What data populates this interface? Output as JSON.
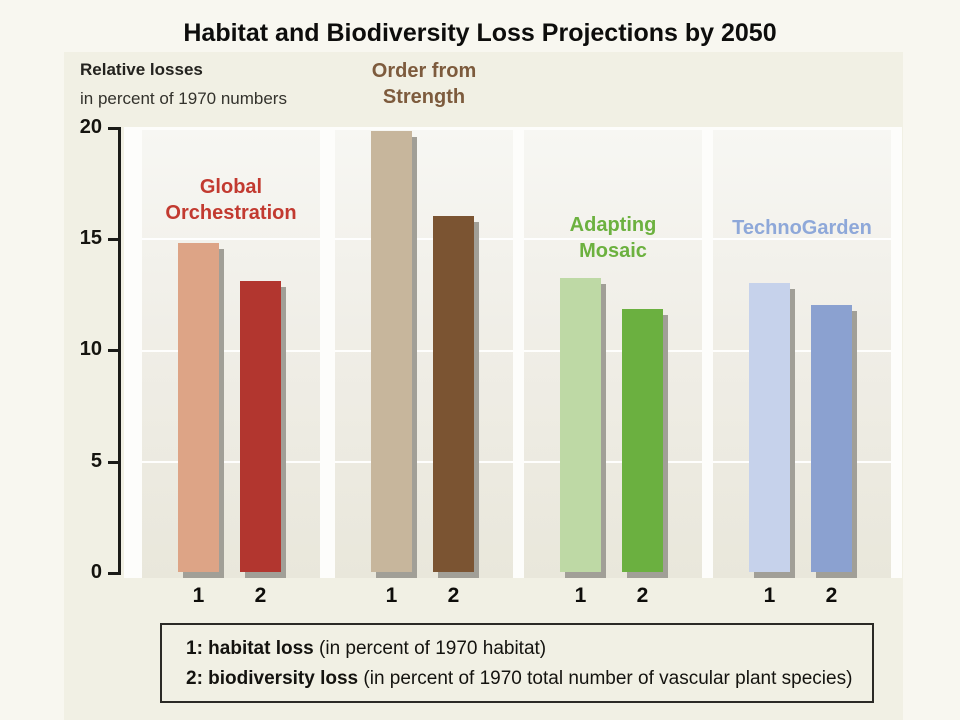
{
  "title": "Habitat and Biodiversity Loss Projections by 2050",
  "axis": {
    "label_bold": "Relative losses",
    "label_rest": "in percent of 1970 numbers",
    "ticks": {
      "t20": "20",
      "t15": "15",
      "t10": "10",
      "t5": "5",
      "t0": "0"
    }
  },
  "groups": [
    {
      "name": "Global Orchestration",
      "name_line1": "Global",
      "name_line2": "Orchestration",
      "label_color": "#c23a30",
      "bars": [
        {
          "label": "1",
          "value": 14.8,
          "color": "#dda486"
        },
        {
          "label": "2",
          "value": 13.1,
          "color": "#b2362f"
        }
      ]
    },
    {
      "name": "Order from Strength",
      "name_line1": "Order from",
      "name_line2": "Strength",
      "label_color": "#7d5b3d",
      "bars": [
        {
          "label": "1",
          "value": 19.8,
          "color": "#c7b69c"
        },
        {
          "label": "2",
          "value": 16.0,
          "color": "#7b5432"
        }
      ]
    },
    {
      "name": "Adapting Mosaic",
      "name_line1": "Adapting",
      "name_line2": "Mosaic",
      "label_color": "#6cb13f",
      "bars": [
        {
          "label": "1",
          "value": 13.2,
          "color": "#bed9a5"
        },
        {
          "label": "2",
          "value": 11.8,
          "color": "#6bb040"
        }
      ]
    },
    {
      "name": "TechnoGarden",
      "name_line1": "TechnoGarden",
      "name_line2": "",
      "label_color": "#8ea8d9",
      "bars": [
        {
          "label": "1",
          "value": 13.0,
          "color": "#c6d2eb"
        },
        {
          "label": "2",
          "value": 12.0,
          "color": "#8ba1d0"
        }
      ]
    }
  ],
  "legend": {
    "item1_bold": "1: habitat loss",
    "item1_rest": " (in percent of 1970 habitat)",
    "item2_bold": "2: biodiversity loss",
    "item2_rest": " (in percent of 1970 total number of vascular plant species)"
  },
  "chart_data": {
    "type": "bar",
    "title": "Habitat and Biodiversity Loss Projections by 2050",
    "subtitle": "Relative losses in percent of 1970 numbers",
    "categories": [
      "Global Orchestration",
      "Order from Strength",
      "Adapting Mosaic",
      "TechnoGarden"
    ],
    "series": [
      {
        "name": "1: habitat loss (in percent of 1970 habitat)",
        "values": [
          14.8,
          19.8,
          13.2,
          13.0
        ]
      },
      {
        "name": "2: biodiversity loss (in percent of 1970 total number of vascular plant species)",
        "values": [
          13.1,
          16.0,
          11.8,
          12.0
        ]
      }
    ],
    "ylim": [
      0,
      20
    ],
    "yticks": [
      0,
      5,
      10,
      15,
      20
    ],
    "grid": "faint horizontal lines at 5, 10, 15 inside group panels",
    "legend_position": "bottom-box",
    "bar_shadow_color": "#a19f97",
    "group_label_colors": [
      "#c23a30",
      "#7d5b3d",
      "#6cb13f",
      "#8ea8d9"
    ]
  }
}
